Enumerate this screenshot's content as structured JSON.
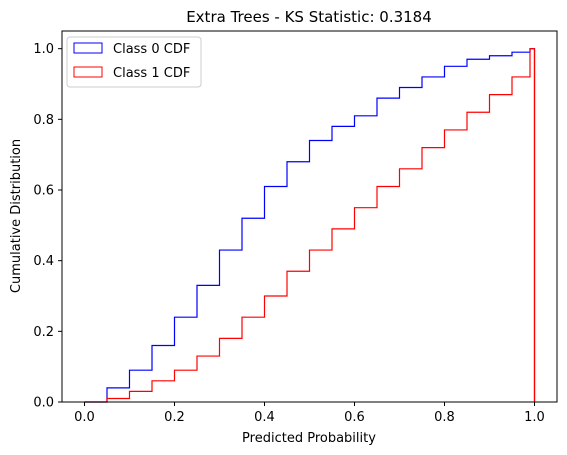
{
  "chart_data": {
    "type": "line",
    "drawstyle": "step-histogram",
    "title": "Extra Trees - KS Statistic: 0.3184",
    "xlabel": "Predicted Probability",
    "ylabel": "Cumulative Distribution",
    "xlim": [
      -0.05,
      1.05
    ],
    "ylim": [
      0,
      1.05
    ],
    "xticks": [
      0.0,
      0.2,
      0.4,
      0.6,
      0.8,
      1.0
    ],
    "xtick_labels": [
      "0.0",
      "0.2",
      "0.4",
      "0.6",
      "0.8",
      "1.0"
    ],
    "yticks": [
      0.0,
      0.2,
      0.4,
      0.6,
      0.8,
      1.0
    ],
    "ytick_labels": [
      "0.0",
      "0.2",
      "0.4",
      "0.6",
      "0.8",
      "1.0"
    ],
    "grid": false,
    "legend_position": "upper left",
    "series": [
      {
        "name": "Class 0 CDF",
        "color": "#0000ff",
        "x": [
          0.0,
          0.05,
          0.1,
          0.15,
          0.2,
          0.25,
          0.3,
          0.35,
          0.4,
          0.45,
          0.5,
          0.55,
          0.6,
          0.65,
          0.7,
          0.75,
          0.8,
          0.85,
          0.9,
          0.95,
          0.99,
          1.0
        ],
        "y": [
          0.0,
          0.04,
          0.09,
          0.16,
          0.24,
          0.33,
          0.43,
          0.52,
          0.61,
          0.68,
          0.74,
          0.78,
          0.81,
          0.86,
          0.89,
          0.92,
          0.95,
          0.97,
          0.98,
          0.99,
          1.0,
          1.0
        ]
      },
      {
        "name": "Class 1 CDF",
        "color": "#ff0000",
        "x": [
          0.0,
          0.05,
          0.1,
          0.15,
          0.2,
          0.25,
          0.3,
          0.35,
          0.4,
          0.45,
          0.5,
          0.55,
          0.6,
          0.65,
          0.7,
          0.75,
          0.8,
          0.85,
          0.9,
          0.95,
          0.99,
          1.0
        ],
        "y": [
          0.0,
          0.01,
          0.03,
          0.06,
          0.09,
          0.13,
          0.18,
          0.24,
          0.3,
          0.37,
          0.43,
          0.49,
          0.55,
          0.61,
          0.66,
          0.72,
          0.77,
          0.82,
          0.87,
          0.92,
          1.0,
          1.0
        ]
      }
    ]
  }
}
